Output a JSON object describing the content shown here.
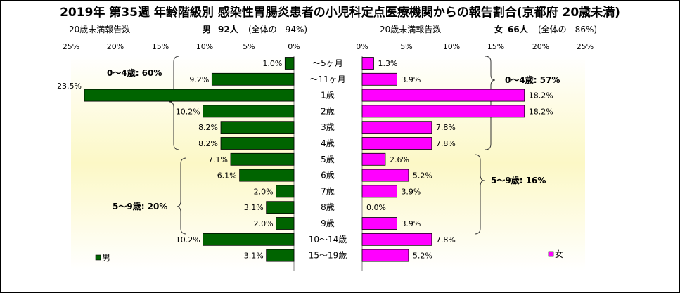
{
  "title": "2019年 第35週 年齢階級別 感染性胃腸炎患者の小児科定点医療機関からの報告割合(京都府 20歳未満)",
  "male_panel": {
    "axis_caption": "20歳未満報告数",
    "sex": "男",
    "count": "92人",
    "share_text": "(全体の　94%)",
    "legend": "男",
    "color": "#006400",
    "group_labels": [
      "0〜4歳: 60%",
      "5〜9歳: 20%"
    ]
  },
  "female_panel": {
    "axis_caption": "20歳未満報告数",
    "sex": "女",
    "count": "66人",
    "share_text": "(全体の　86%)",
    "legend": "女",
    "color": "#ff00ff",
    "group_labels": [
      "0〜4歳: 57%",
      "5〜9歳: 16%"
    ]
  },
  "chart_data": {
    "type": "bar",
    "orientation": "horizontal",
    "layout": "population-pyramid",
    "title": "2019年 第35週 年齢階級別 感染性胃腸炎患者の小児科定点医療機関からの報告割合(京都府 20歳未満)",
    "categories": [
      "〜5ヶ月",
      "〜11ヶ月",
      "1歳",
      "2歳",
      "3歳",
      "4歳",
      "5歳",
      "6歳",
      "7歳",
      "8歳",
      "9歳",
      "10〜14歳",
      "15〜19歳"
    ],
    "xlim": [
      0,
      25
    ],
    "xticks": [
      "0%",
      "5%",
      "10%",
      "15%",
      "20%",
      "25%"
    ],
    "series": [
      {
        "name": "男",
        "color": "#006400",
        "values": [
          1.0,
          9.2,
          23.5,
          10.2,
          8.2,
          8.2,
          7.1,
          6.1,
          2.0,
          3.1,
          2.0,
          10.2,
          3.1
        ]
      },
      {
        "name": "女",
        "color": "#ff00ff",
        "values": [
          1.3,
          3.9,
          18.2,
          18.2,
          7.8,
          7.8,
          2.6,
          5.2,
          3.9,
          0.0,
          3.9,
          7.8,
          5.2
        ]
      }
    ],
    "legend_position": "bottom-left of each panel"
  }
}
